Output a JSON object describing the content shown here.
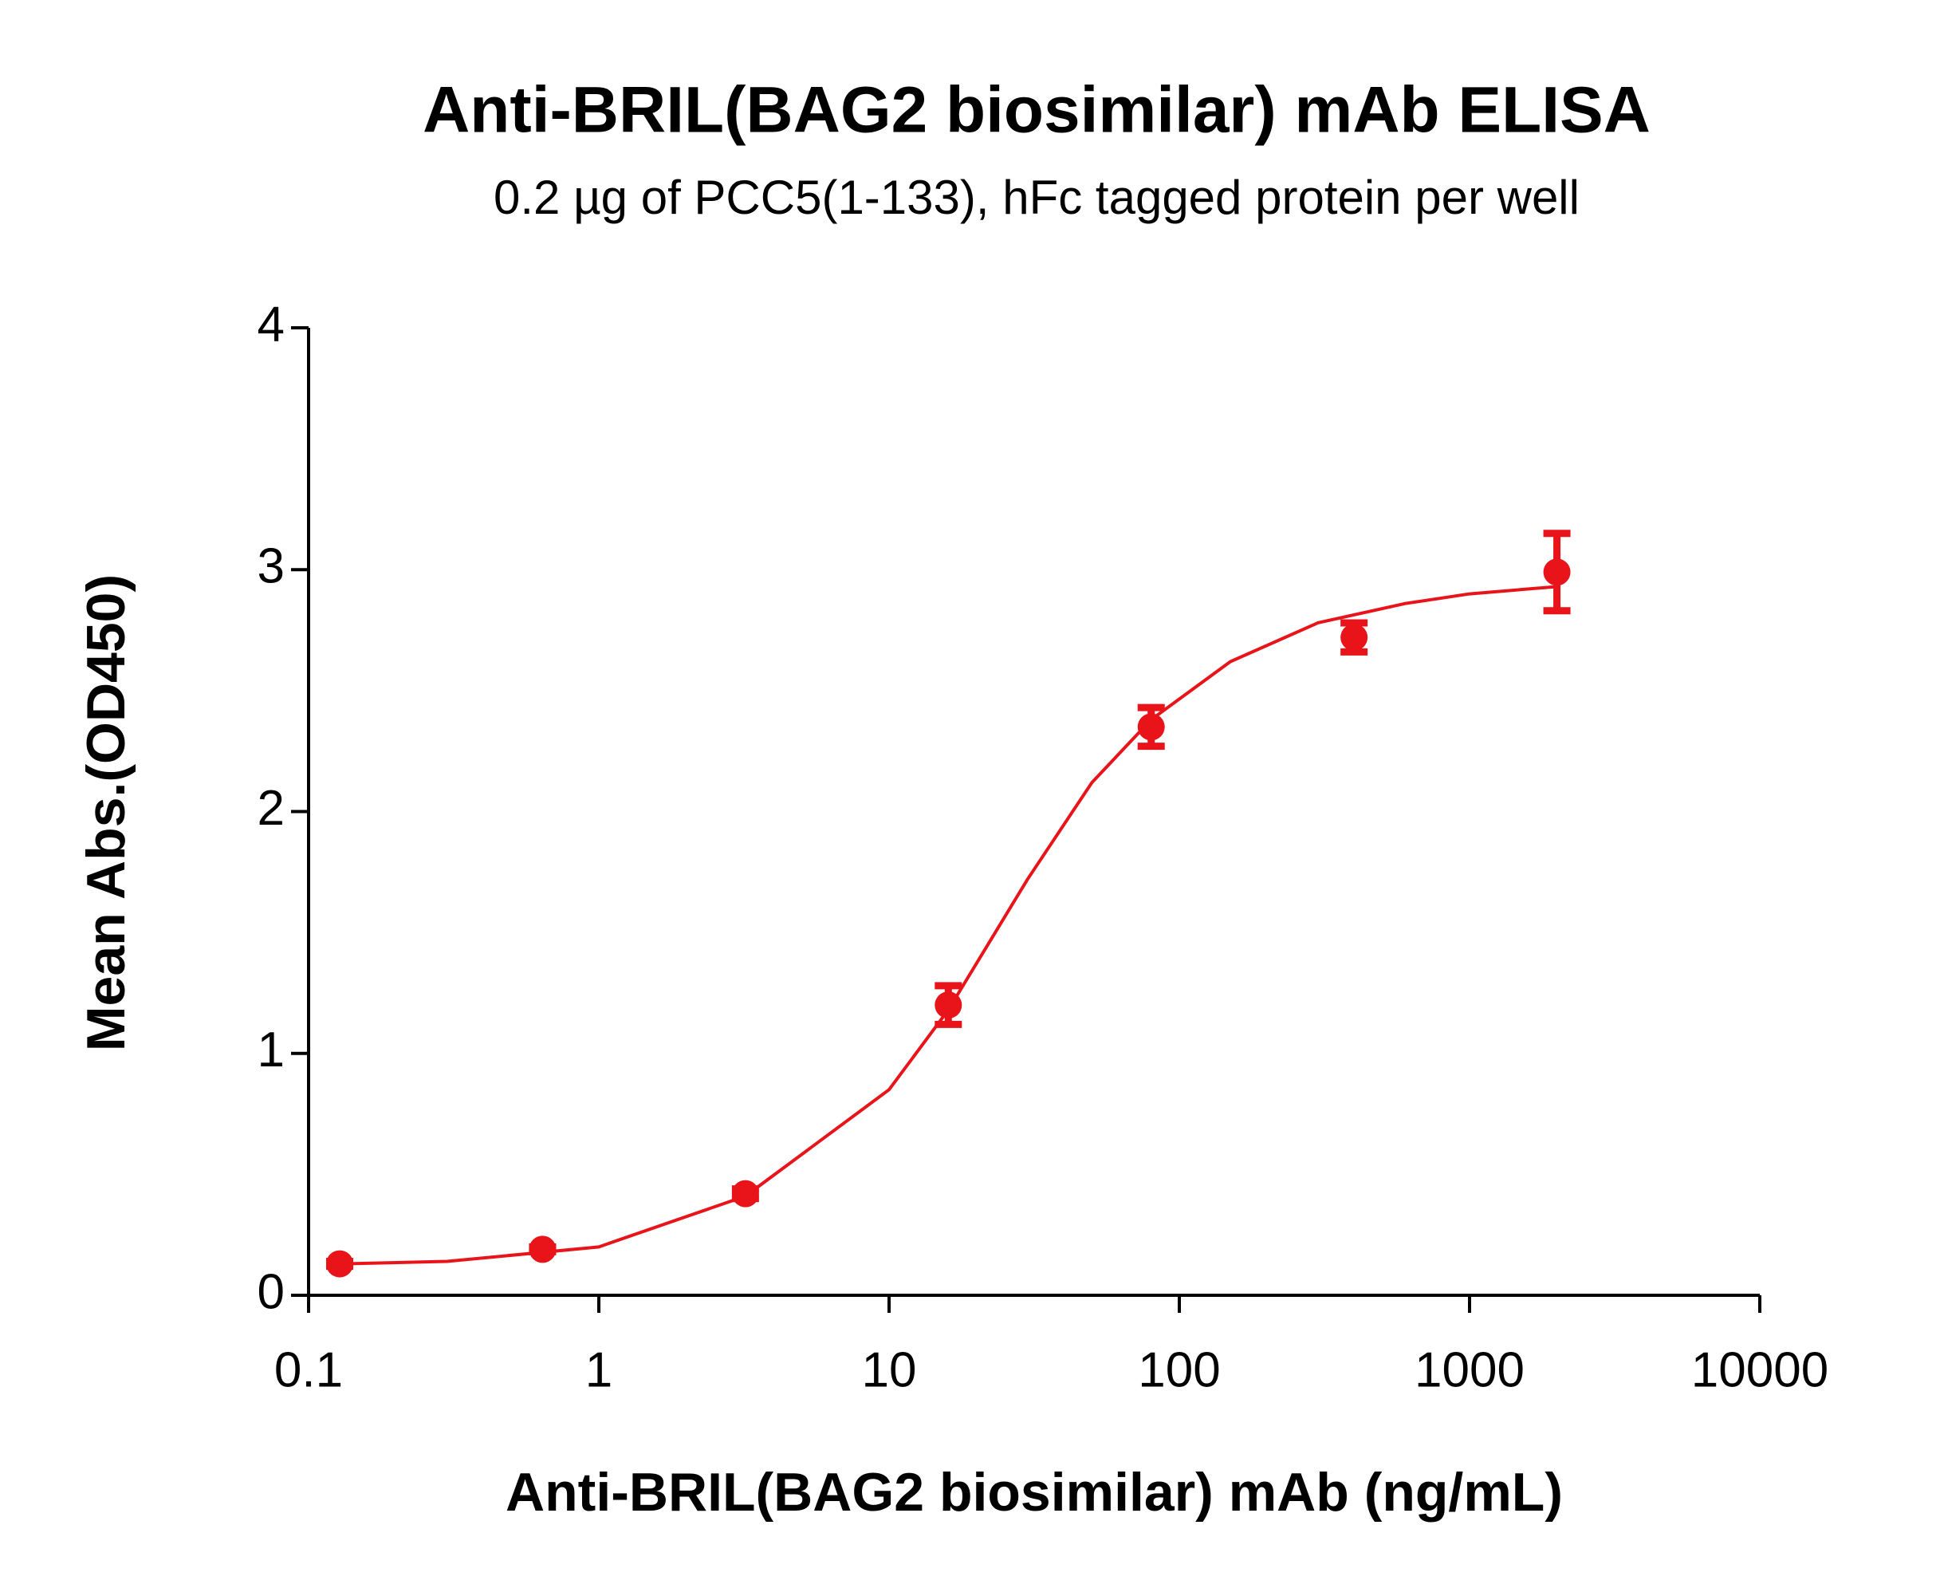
{
  "chart_data": {
    "type": "scatter",
    "title": "Anti-BRIL(BAG2 biosimilar) mAb ELISA",
    "subtitle": "0.2 µg of PCC5(1-133), hFc tagged protein per well",
    "x_label": "Anti-BRIL(BAG2 biosimilar) mAb (ng/mL)",
    "y_label": "Mean Abs.(OD450)",
    "x_scale": "log",
    "xlim": [
      0.1,
      10000
    ],
    "xticks": [
      0.1,
      1,
      10,
      100,
      1000,
      10000
    ],
    "ylim": [
      0,
      4
    ],
    "yticks": [
      0,
      1,
      2,
      3,
      4
    ],
    "color": "#e8141a",
    "x": [
      0.128,
      0.64,
      3.2,
      16,
      80,
      400,
      2000
    ],
    "values": [
      0.13,
      0.19,
      0.42,
      1.2,
      2.35,
      2.72,
      2.99
    ],
    "errors": [
      0.01,
      0.01,
      0.02,
      0.08,
      0.08,
      0.06,
      0.16
    ],
    "curve": {
      "x": [
        0.13,
        0.3,
        1,
        3.2,
        10,
        16,
        30,
        50,
        80,
        150,
        300,
        600,
        1000,
        2000
      ],
      "values": [
        0.13,
        0.14,
        0.2,
        0.41,
        0.85,
        1.18,
        1.72,
        2.12,
        2.38,
        2.62,
        2.78,
        2.86,
        2.9,
        2.93
      ]
    }
  }
}
